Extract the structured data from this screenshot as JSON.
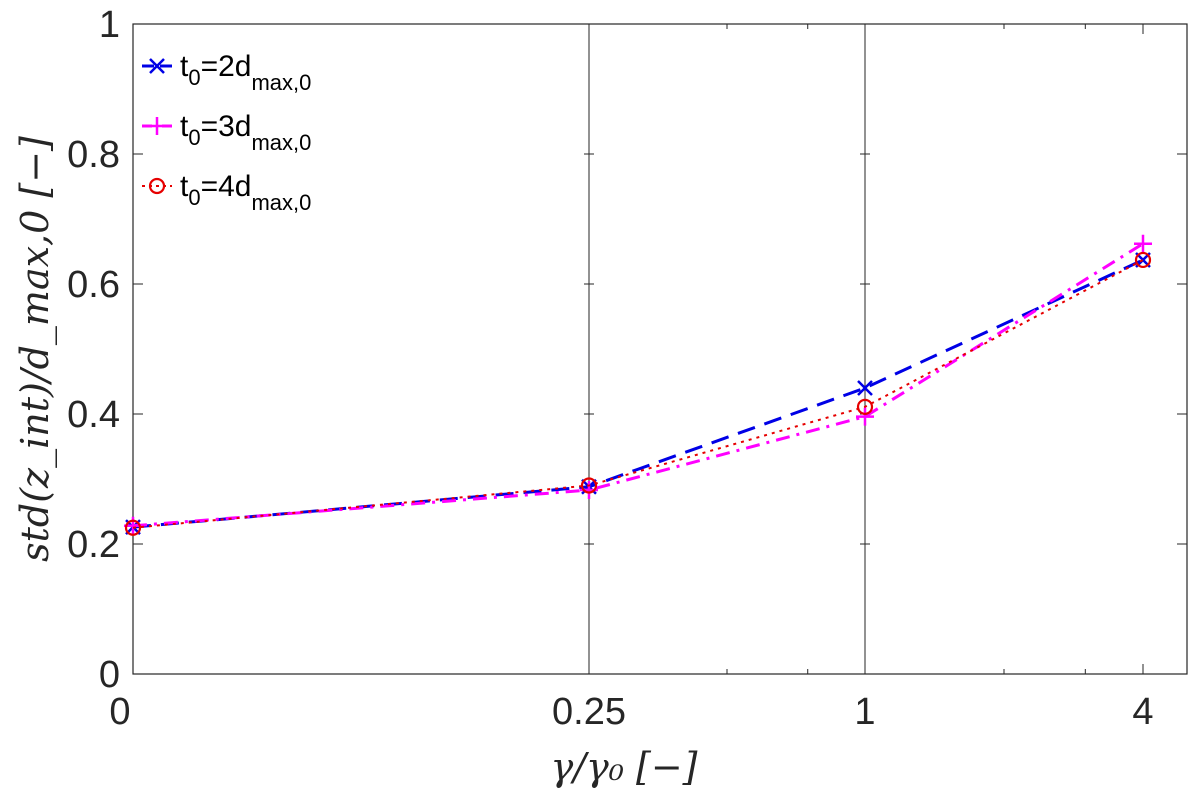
{
  "chart_data": {
    "type": "line",
    "xlabel": "γ/γ₀ [−]",
    "ylabel": "std(z_int)/d_max,0 [−]",
    "x_scale": "log",
    "x_tick_labels": [
      "0",
      "0.25",
      "1",
      "4"
    ],
    "x_tick_values": [
      0.0625,
      0.25,
      1,
      4
    ],
    "x": [
      0.0625,
      0.25,
      1,
      4
    ],
    "ylim": [
      0,
      1
    ],
    "y_ticks": [
      0,
      0.2,
      0.4,
      0.6,
      0.8,
      1
    ],
    "y_tick_labels": [
      "0",
      "0.2",
      "0.4",
      "0.6",
      "0.8",
      "1"
    ],
    "vertical_gridlines_at": [
      0.25,
      1
    ],
    "legend_position": "top-left",
    "series": [
      {
        "name_main": "t",
        "name_sub1": "0",
        "name_mid": "=2d",
        "name_sub2": "max,0",
        "color": "#0000e6",
        "marker": "x",
        "line_style": "dashed",
        "values": [
          0.226,
          0.288,
          0.44,
          0.637
        ]
      },
      {
        "name_main": "t",
        "name_sub1": "0",
        "name_mid": "=3d",
        "name_sub2": "max,0",
        "color": "#ff00ff",
        "marker": "+",
        "line_style": "dash-dot",
        "values": [
          0.228,
          0.283,
          0.396,
          0.662
        ]
      },
      {
        "name_main": "t",
        "name_sub1": "0",
        "name_mid": "=4d",
        "name_sub2": "max,0",
        "color": "#e60000",
        "marker": "o",
        "line_style": "dotted",
        "values": [
          0.225,
          0.29,
          0.411,
          0.637
        ]
      }
    ]
  }
}
